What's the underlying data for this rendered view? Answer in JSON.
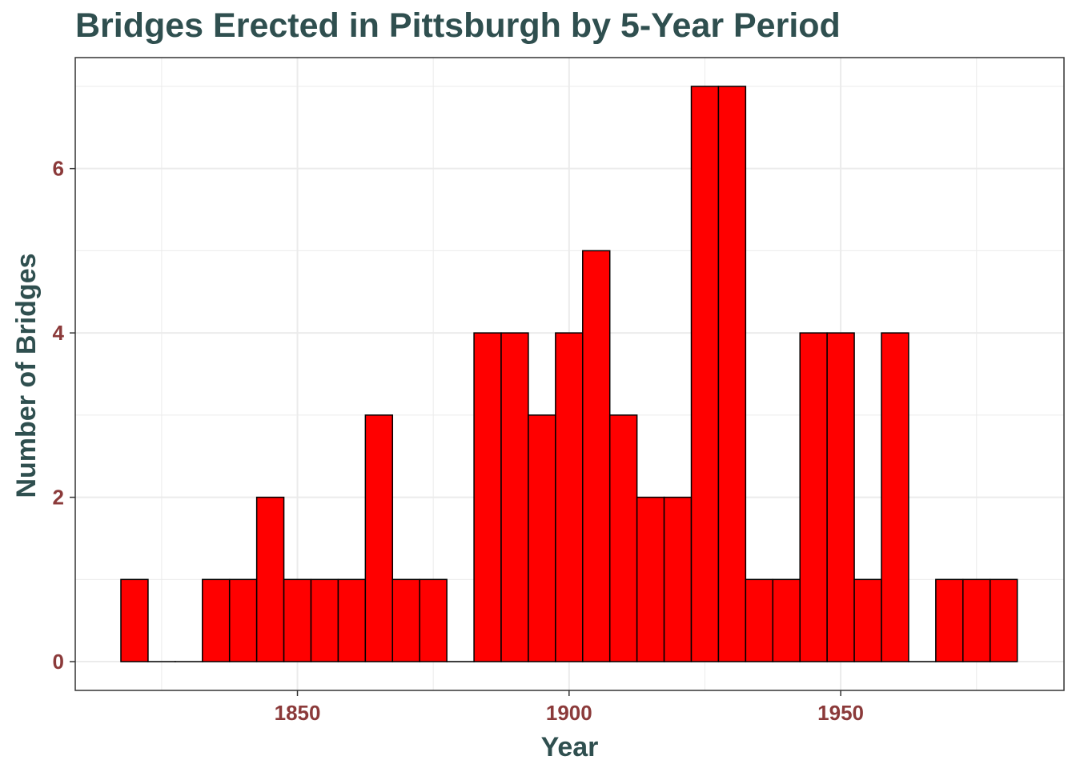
{
  "chart_data": {
    "type": "bar",
    "title": "Bridges Erected in Pittsburgh by 5-Year Period",
    "xlabel": "Year",
    "ylabel": "Number of Bridges",
    "bin_width": 5,
    "x": [
      1820,
      1825,
      1830,
      1835,
      1840,
      1845,
      1850,
      1855,
      1860,
      1865,
      1870,
      1875,
      1880,
      1885,
      1890,
      1895,
      1900,
      1905,
      1910,
      1915,
      1920,
      1925,
      1930,
      1935,
      1940,
      1945,
      1950,
      1955,
      1960,
      1965,
      1970,
      1975,
      1980
    ],
    "values": [
      1,
      0,
      0,
      1,
      1,
      2,
      1,
      1,
      1,
      3,
      1,
      1,
      0,
      4,
      4,
      3,
      4,
      5,
      3,
      2,
      2,
      7,
      7,
      1,
      1,
      4,
      4,
      1,
      4,
      0,
      1,
      1,
      1
    ],
    "xlim": [
      1809.1,
      1991.1
    ],
    "ylim": [
      -0.35,
      7.35
    ],
    "x_ticks": [
      "1850",
      "1900",
      "1950"
    ],
    "y_ticks": [
      "0",
      "2",
      "4",
      "6"
    ],
    "grid": true,
    "colors": {
      "bar_fill": "#ff0000",
      "bar_stroke": "#000000",
      "title": "#2f4f4f",
      "tick_label": "#8b3a3a",
      "grid": "#ebebeb"
    }
  }
}
